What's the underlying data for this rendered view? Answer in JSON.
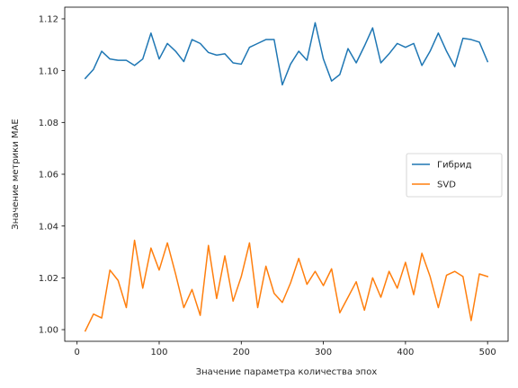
{
  "chart_data": {
    "type": "line",
    "title": "",
    "xlabel": "Значение параметра количества эпох",
    "ylabel": "Значение метрики MAE",
    "xlim": [
      -15,
      525
    ],
    "ylim": [
      0.9955,
      1.1245
    ],
    "xticks": [
      0,
      100,
      200,
      300,
      400,
      500
    ],
    "yticks": [
      1.0,
      1.02,
      1.04,
      1.06,
      1.08,
      1.1,
      1.12
    ],
    "grid": false,
    "legend_position": "center-right",
    "x": [
      10,
      20,
      30,
      40,
      50,
      60,
      70,
      80,
      90,
      100,
      110,
      120,
      130,
      140,
      150,
      160,
      170,
      180,
      190,
      200,
      210,
      220,
      230,
      240,
      250,
      260,
      270,
      280,
      290,
      300,
      310,
      320,
      330,
      340,
      350,
      360,
      370,
      380,
      390,
      400,
      410,
      420,
      430,
      440,
      450,
      460,
      470,
      480,
      490,
      500
    ],
    "series": [
      {
        "name": "Гибрид",
        "color": "#1f77b4",
        "values": [
          1.097,
          1.1005,
          1.1075,
          1.1045,
          1.104,
          1.104,
          1.102,
          1.1045,
          1.1145,
          1.1045,
          1.1105,
          1.1075,
          1.1035,
          1.112,
          1.1105,
          1.107,
          1.106,
          1.1065,
          1.103,
          1.1025,
          1.109,
          1.1105,
          1.112,
          1.112,
          1.0945,
          1.1025,
          1.1075,
          1.104,
          1.1185,
          1.1045,
          1.096,
          1.0985,
          1.1085,
          1.103,
          1.1095,
          1.1165,
          1.103,
          1.1065,
          1.1105,
          1.109,
          1.1105,
          1.102,
          1.1075,
          1.1145,
          1.1075,
          1.1015,
          1.1125,
          1.112,
          1.111,
          1.1035
        ]
      },
      {
        "name": "SVD",
        "color": "#ff7f0e",
        "values": [
          0.9995,
          1.006,
          1.0045,
          1.023,
          1.019,
          1.0085,
          1.0345,
          1.016,
          1.0315,
          1.023,
          1.0335,
          1.0215,
          1.0085,
          1.0155,
          1.0055,
          1.0325,
          1.012,
          1.0285,
          1.011,
          1.0205,
          1.0335,
          1.0085,
          1.0245,
          1.014,
          1.0105,
          1.018,
          1.0275,
          1.0175,
          1.0225,
          1.017,
          1.0235,
          1.0065,
          1.0125,
          1.0185,
          1.0075,
          1.02,
          1.0125,
          1.0225,
          1.016,
          1.026,
          1.0135,
          1.0295,
          1.0205,
          1.0085,
          1.021,
          1.0225,
          1.0205,
          1.0035,
          1.0215,
          1.0205
        ]
      }
    ]
  }
}
